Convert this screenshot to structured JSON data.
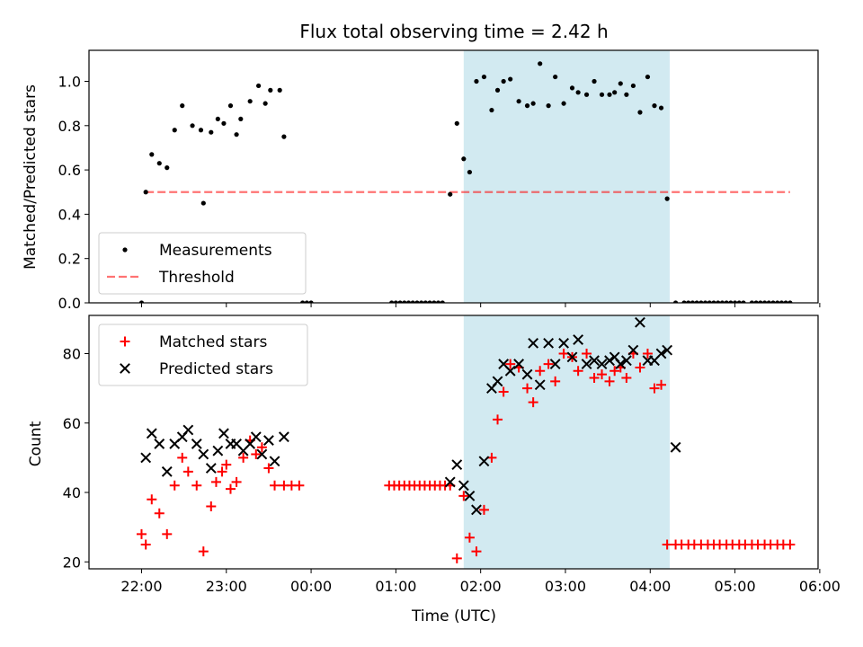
{
  "title": "Flux total observing time = 2.42 h",
  "shade_color": "#add8e6",
  "chart_data": [
    {
      "type": "scatter",
      "ylabel": "Matched/Predicted stars",
      "xlim": [
        -0.62,
        7.98
      ],
      "ylim": [
        0,
        1.14
      ],
      "yticks": [
        0.0,
        0.2,
        0.4,
        0.6,
        0.8,
        1.0
      ],
      "ytick_labels": [
        "0.0",
        "0.2",
        "0.4",
        "0.6",
        "0.8",
        "1.0"
      ],
      "shaded_interval": [
        3.8,
        6.23
      ],
      "legend": {
        "placement": "lower-left",
        "items": [
          "Measurements",
          "Threshold"
        ]
      },
      "threshold": {
        "name": "Threshold",
        "y": 0.5,
        "x": [
          0.05,
          7.65
        ],
        "color": "#ff0000",
        "style": "dashed"
      },
      "series": [
        {
          "name": "Measurements",
          "color": "#000000",
          "x": [
            0.0,
            0.05,
            0.12,
            0.21,
            0.3,
            0.39,
            0.48,
            0.6,
            0.7,
            0.73,
            0.82,
            0.9,
            0.97,
            1.05,
            1.12,
            1.17,
            1.28,
            1.38,
            1.46,
            1.52,
            1.63,
            1.68,
            1.9,
            1.95,
            2.0,
            2.95,
            3.0,
            3.05,
            3.1,
            3.15,
            3.2,
            3.25,
            3.3,
            3.35,
            3.4,
            3.45,
            3.5,
            3.55,
            3.64,
            3.72,
            3.8,
            3.87,
            3.95,
            4.04,
            4.13,
            4.2,
            4.27,
            4.35,
            4.45,
            4.55,
            4.62,
            4.7,
            4.8,
            4.88,
            4.98,
            5.08,
            5.15,
            5.25,
            5.34,
            5.43,
            5.52,
            5.58,
            5.65,
            5.72,
            5.8,
            5.88,
            5.97,
            6.05,
            6.13,
            6.2,
            6.3,
            6.4,
            6.45,
            6.5,
            6.55,
            6.6,
            6.65,
            6.7,
            6.75,
            6.8,
            6.85,
            6.9,
            6.95,
            7.0,
            7.05,
            7.1,
            7.2,
            7.25,
            7.3,
            7.35,
            7.4,
            7.45,
            7.5,
            7.55,
            7.6,
            7.65
          ],
          "y": [
            0.0,
            0.5,
            0.67,
            0.63,
            0.61,
            0.78,
            0.89,
            0.8,
            0.78,
            0.45,
            0.77,
            0.83,
            0.81,
            0.89,
            0.76,
            0.83,
            0.91,
            0.98,
            0.9,
            0.96,
            0.96,
            0.75,
            0.0,
            0.0,
            0.0,
            0.0,
            0.0,
            0.0,
            0.0,
            0.0,
            0.0,
            0.0,
            0.0,
            0.0,
            0.0,
            0.0,
            0.0,
            0.0,
            0.49,
            0.81,
            0.65,
            0.59,
            1.0,
            1.02,
            0.87,
            0.96,
            1.0,
            1.01,
            0.91,
            0.89,
            0.9,
            1.08,
            0.89,
            1.02,
            0.9,
            0.97,
            0.95,
            0.94,
            1.0,
            0.94,
            0.94,
            0.95,
            0.99,
            0.94,
            0.98,
            0.86,
            1.02,
            0.89,
            0.88,
            0.47,
            0.0,
            0.0,
            0.0,
            0.0,
            0.0,
            0.0,
            0.0,
            0.0,
            0.0,
            0.0,
            0.0,
            0.0,
            0.0,
            0.0,
            0.0,
            0.0,
            0.0,
            0.0,
            0.0,
            0.0,
            0.0,
            0.0,
            0.0,
            0.0,
            0.0,
            0.0
          ]
        }
      ]
    },
    {
      "type": "scatter",
      "ylabel": "Count",
      "xlabel": "Time (UTC)",
      "xlim": [
        -0.62,
        7.98
      ],
      "ylim": [
        18,
        91
      ],
      "yticks": [
        20,
        40,
        60,
        80
      ],
      "ytick_labels": [
        "20",
        "40",
        "60",
        "80"
      ],
      "xticks": [
        0,
        1,
        2,
        3,
        4,
        5,
        6,
        7,
        8
      ],
      "xtick_labels": [
        "22:00",
        "23:00",
        "00:00",
        "01:00",
        "02:00",
        "03:00",
        "04:00",
        "05:00",
        "06:00"
      ],
      "shaded_interval": [
        3.8,
        6.23
      ],
      "legend": {
        "placement": "upper-left",
        "items": [
          "Matched stars",
          "Predicted stars"
        ]
      },
      "series": [
        {
          "name": "Matched stars",
          "color": "#ff0000",
          "marker": "plus",
          "x": [
            0.0,
            0.05,
            0.12,
            0.21,
            0.3,
            0.39,
            0.48,
            0.55,
            0.65,
            0.73,
            0.82,
            0.88,
            0.95,
            1.0,
            1.05,
            1.12,
            1.2,
            1.28,
            1.35,
            1.42,
            1.5,
            1.57,
            1.68,
            1.77,
            1.86,
            2.92,
            2.98,
            3.04,
            3.1,
            3.16,
            3.22,
            3.28,
            3.34,
            3.4,
            3.46,
            3.52,
            3.58,
            3.64,
            3.72,
            3.8,
            3.87,
            3.95,
            4.04,
            4.13,
            4.2,
            4.27,
            4.35,
            4.45,
            4.55,
            4.62,
            4.7,
            4.8,
            4.88,
            4.98,
            5.08,
            5.15,
            5.25,
            5.34,
            5.43,
            5.52,
            5.58,
            5.65,
            5.72,
            5.8,
            5.88,
            5.97,
            6.05,
            6.13,
            6.2,
            6.3,
            6.37,
            6.45,
            6.52,
            6.6,
            6.68,
            6.75,
            6.82,
            6.9,
            6.97,
            7.05,
            7.12,
            7.2,
            7.27,
            7.35,
            7.42,
            7.5,
            7.57,
            7.65
          ],
          "y": [
            28,
            25,
            38,
            34,
            28,
            42,
            50,
            46,
            42,
            23,
            36,
            43,
            46,
            48,
            41,
            43,
            50,
            55,
            51,
            53,
            47,
            42,
            42,
            42,
            42,
            42,
            42,
            42,
            42,
            42,
            42,
            42,
            42,
            42,
            42,
            42,
            42,
            42,
            21,
            39,
            27,
            23,
            35,
            50,
            61,
            69,
            77,
            76,
            70,
            66,
            75,
            77,
            72,
            80,
            79,
            75,
            80,
            73,
            74,
            72,
            75,
            76,
            73,
            80,
            76,
            80,
            70,
            71,
            25,
            25,
            25,
            25,
            25,
            25,
            25,
            25,
            25,
            25,
            25,
            25,
            25,
            25,
            25,
            25,
            25,
            25,
            25,
            25
          ]
        },
        {
          "name": "Predicted stars",
          "color": "#000000",
          "marker": "x",
          "x": [
            0.05,
            0.12,
            0.21,
            0.3,
            0.39,
            0.48,
            0.55,
            0.65,
            0.73,
            0.82,
            0.9,
            0.97,
            1.05,
            1.12,
            1.2,
            1.28,
            1.35,
            1.42,
            1.5,
            1.57,
            1.68,
            3.64,
            3.72,
            3.8,
            3.87,
            3.95,
            4.04,
            4.13,
            4.2,
            4.27,
            4.35,
            4.45,
            4.55,
            4.62,
            4.7,
            4.8,
            4.88,
            4.98,
            5.08,
            5.15,
            5.25,
            5.34,
            5.43,
            5.52,
            5.58,
            5.65,
            5.72,
            5.8,
            5.88,
            5.97,
            6.05,
            6.13,
            6.2,
            6.3
          ],
          "y": [
            50,
            57,
            54,
            46,
            54,
            56,
            58,
            54,
            51,
            47,
            52,
            57,
            54,
            54,
            52,
            54,
            56,
            51,
            55,
            49,
            56,
            43,
            48,
            42,
            39,
            35,
            49,
            70,
            72,
            77,
            75,
            77,
            74,
            83,
            71,
            83,
            77,
            83,
            79,
            84,
            77,
            78,
            77,
            78,
            79,
            77,
            78,
            81,
            89,
            78,
            78,
            80,
            81,
            53
          ]
        }
      ]
    }
  ]
}
